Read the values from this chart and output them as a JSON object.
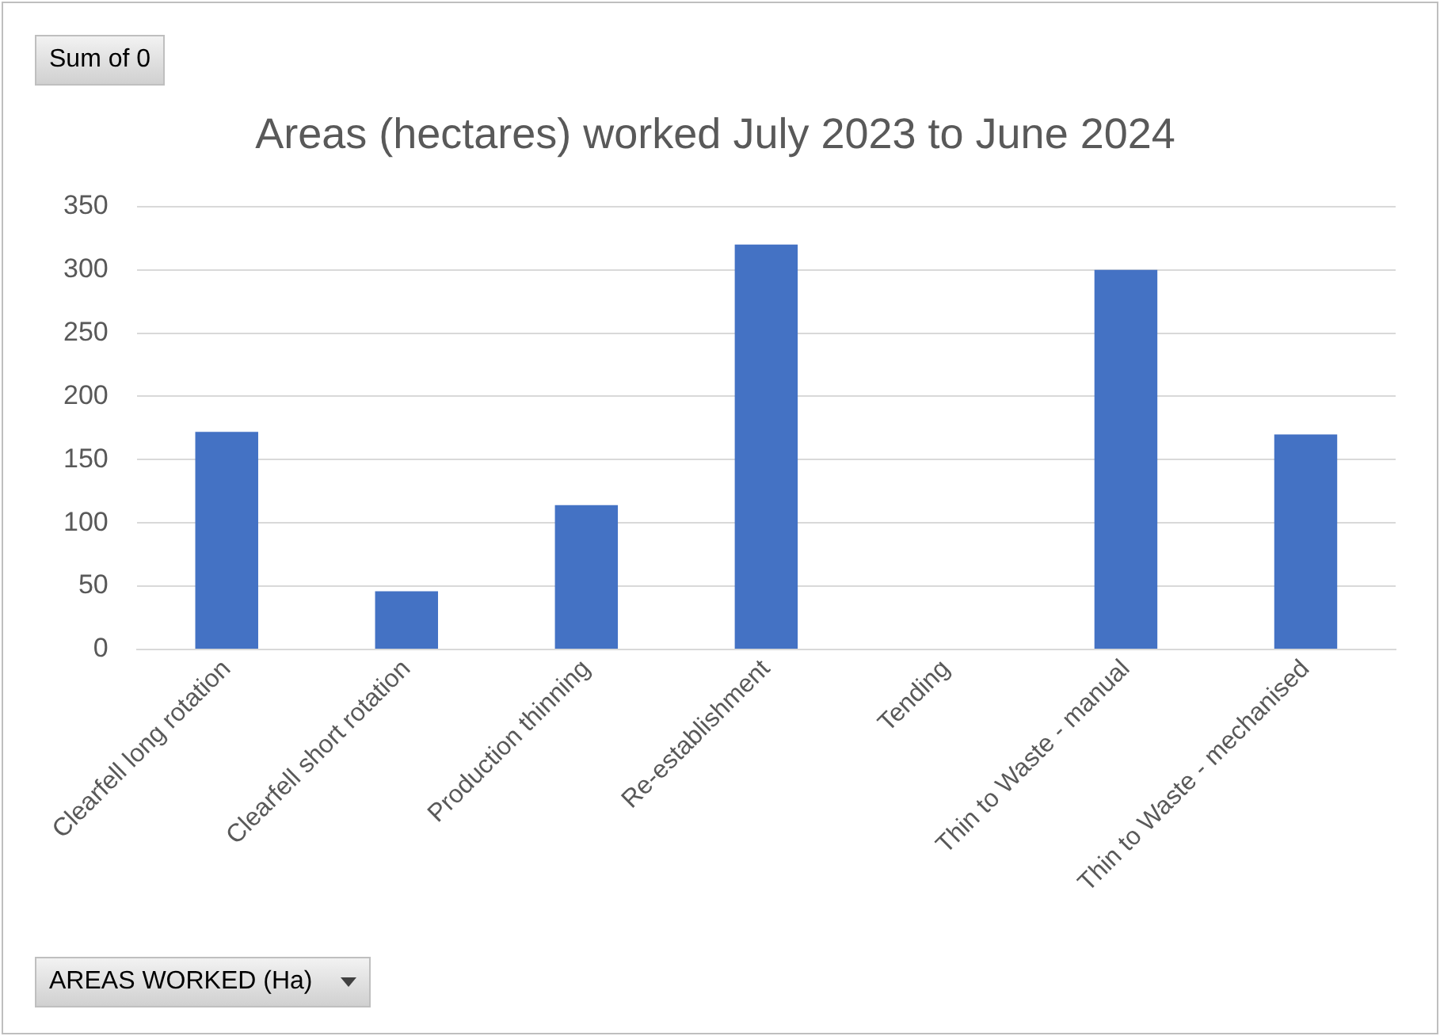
{
  "chart_data": {
    "type": "bar",
    "title": "Areas (hectares) worked July 2023 to June 2024",
    "categories": [
      "Clearfell long rotation",
      "Clearfell short rotation",
      "Production thinning",
      "Re-establishment",
      "Tending",
      "Thin to Waste - manual",
      "Thin to Waste - mechanised"
    ],
    "values": [
      172,
      46,
      114,
      320,
      0,
      300,
      170
    ],
    "color": "#4472c4",
    "ylim": [
      0,
      350
    ],
    "yticks": [
      0,
      50,
      100,
      150,
      200,
      250,
      300,
      350
    ],
    "grid": "y",
    "legend": false,
    "annotations": [
      "Sum of 0",
      "AREAS WORKED (Ha)"
    ]
  }
}
